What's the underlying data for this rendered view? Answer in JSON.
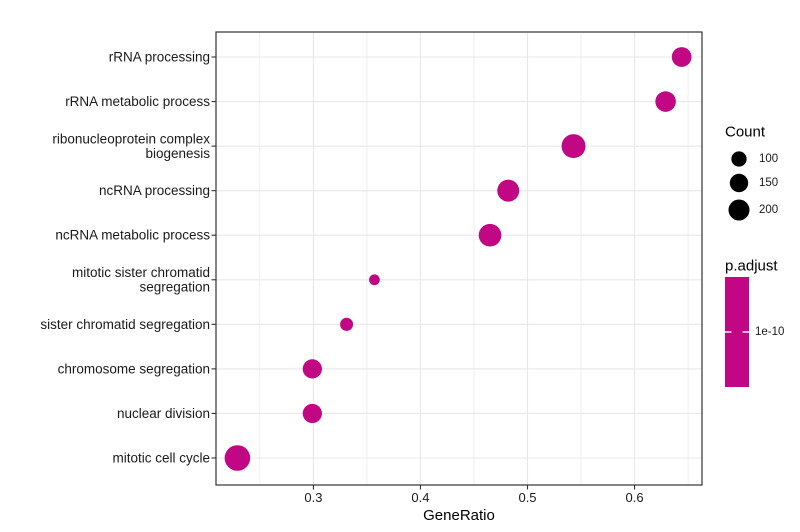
{
  "chart_data": {
    "type": "scatter",
    "subtype": "go-enrichment-dotplot",
    "xlabel": "GeneRatio",
    "xlim": [
      0.209,
      0.663
    ],
    "x_ticks": [
      0.3,
      0.4,
      0.5,
      0.6
    ],
    "x_tick_labels": [
      "0.3",
      "0.4",
      "0.5",
      "0.6"
    ],
    "x_minor_ticks": [
      0.25,
      0.35,
      0.45,
      0.55,
      0.65
    ],
    "grid": true,
    "points": [
      {
        "term": "rRNA processing",
        "gene_ratio": 0.644,
        "count": 175
      },
      {
        "term": "rRNA metabolic process",
        "gene_ratio": 0.629,
        "count": 190
      },
      {
        "term": "ribonucleoprotein complex\nbiogenesis",
        "gene_ratio": 0.543,
        "count": 265
      },
      {
        "term": "ncRNA processing",
        "gene_ratio": 0.482,
        "count": 220
      },
      {
        "term": "ncRNA metabolic process",
        "gene_ratio": 0.465,
        "count": 235
      },
      {
        "term": "mitotic sister chromatid\nsegregation",
        "gene_ratio": 0.357,
        "count": 45
      },
      {
        "term": "sister chromatid segregation",
        "gene_ratio": 0.331,
        "count": 70
      },
      {
        "term": "chromosome segregation",
        "gene_ratio": 0.299,
        "count": 165
      },
      {
        "term": "nuclear division",
        "gene_ratio": 0.299,
        "count": 165
      },
      {
        "term": "mitotic cell cycle",
        "gene_ratio": 0.229,
        "count": 305
      }
    ],
    "legend": {
      "position": "right",
      "count": {
        "title": "Count",
        "breaks": [
          100,
          150,
          200
        ],
        "break_labels": [
          "100",
          "150",
          "200"
        ]
      },
      "p_adjust": {
        "title": "p.adjust",
        "tick_label": "1e-10",
        "tick_fraction": 0.5
      }
    },
    "colors": {
      "dot": "#C10784",
      "legend_key": "#000000",
      "grid": "#E8E8E8",
      "panel_border": "#333333",
      "tick": "#333333",
      "axis_text": "#1A1A1A",
      "title_text": "#000000",
      "panel_bg": "#FFFFFF"
    }
  }
}
